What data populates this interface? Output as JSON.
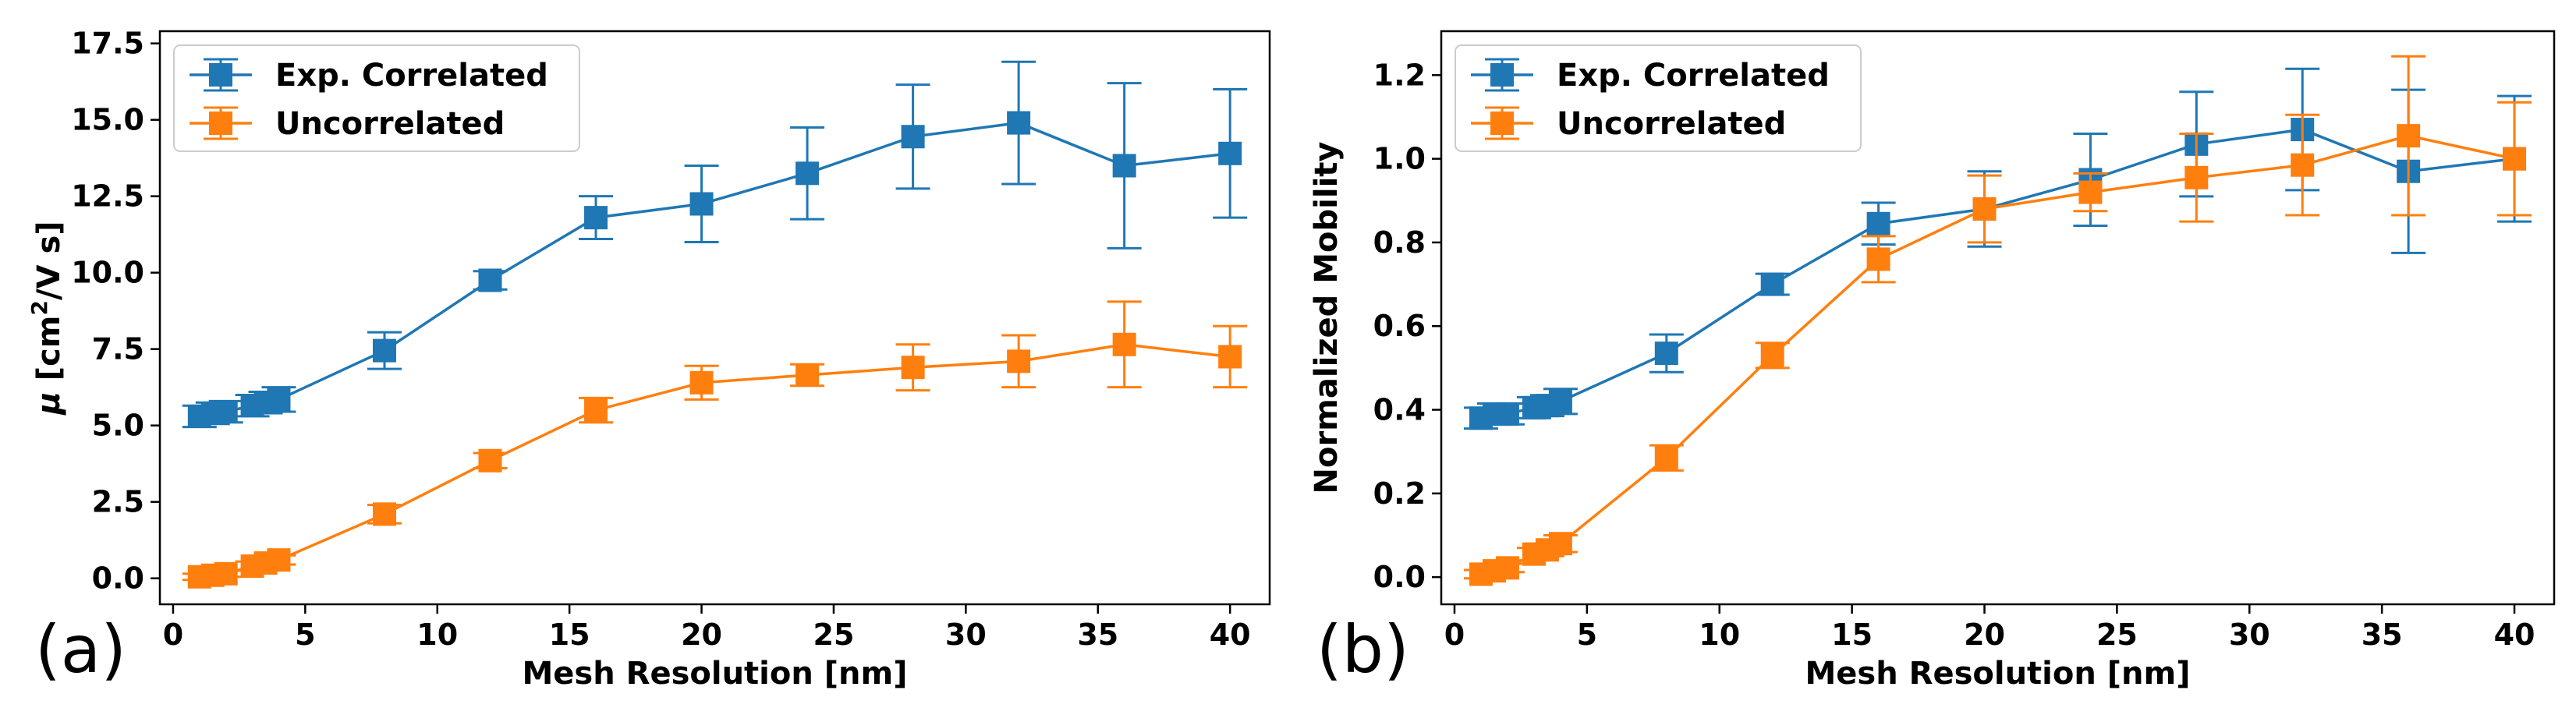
{
  "colors": {
    "exp": "#1f77b4",
    "uncorr": "#ff7f0e"
  },
  "chart_data": [
    {
      "type": "line",
      "panel_label": "(a)",
      "xlabel": "Mesh Resolution [nm]",
      "ylabel_parts": {
        "mu": "μ",
        "open": " [cm",
        "exp": "2",
        "close": "/V s]"
      },
      "xlim": [
        -0.5,
        41.5
      ],
      "ylim": [
        -0.85,
        17.9
      ],
      "xticks": [
        0,
        5,
        10,
        15,
        20,
        25,
        30,
        35,
        40
      ],
      "xtick_labels": [
        "0",
        "5",
        "10",
        "15",
        "20",
        "25",
        "30",
        "35",
        "40"
      ],
      "yticks": [
        0.0,
        2.5,
        5.0,
        7.5,
        10.0,
        12.5,
        15.0,
        17.5
      ],
      "ytick_labels": [
        "0.0",
        "2.5",
        "5.0",
        "7.5",
        "10.0",
        "12.5",
        "15.0",
        "17.5"
      ],
      "legend": {
        "position": "upper-left",
        "entries": [
          "Exp. Correlated",
          "Uncorrelated"
        ]
      },
      "x": [
        1,
        1.5,
        2,
        3,
        3.5,
        4,
        8,
        12,
        16,
        20,
        24,
        28,
        32,
        36,
        40
      ],
      "series": [
        {
          "name": "Exp. Correlated",
          "color_key": "exp",
          "values": [
            5.3,
            5.4,
            5.45,
            5.65,
            5.75,
            5.85,
            7.45,
            9.75,
            11.8,
            12.25,
            13.25,
            14.45,
            14.9,
            13.5,
            13.9
          ],
          "errors": [
            0.35,
            0.35,
            0.35,
            0.35,
            0.35,
            0.4,
            0.6,
            0.3,
            0.7,
            1.25,
            1.5,
            1.7,
            2.0,
            2.7,
            2.1
          ]
        },
        {
          "name": "Uncorrelated",
          "color_key": "uncorr",
          "values": [
            0.05,
            0.1,
            0.15,
            0.4,
            0.5,
            0.6,
            2.1,
            3.85,
            5.5,
            6.4,
            6.65,
            6.9,
            7.1,
            7.65,
            7.25
          ],
          "errors": [
            0.1,
            0.1,
            0.1,
            0.15,
            0.15,
            0.15,
            0.3,
            0.25,
            0.4,
            0.55,
            0.35,
            0.75,
            0.85,
            1.4,
            1.0
          ]
        }
      ]
    },
    {
      "type": "line",
      "panel_label": "(b)",
      "xlabel": "Mesh Resolution [nm]",
      "ylabel": "Normalized Mobility",
      "xlim": [
        -0.5,
        41.5
      ],
      "ylim": [
        -0.065,
        1.305
      ],
      "xticks": [
        0,
        5,
        10,
        15,
        20,
        25,
        30,
        35,
        40
      ],
      "xtick_labels": [
        "0",
        "5",
        "10",
        "15",
        "20",
        "25",
        "30",
        "35",
        "40"
      ],
      "yticks": [
        0.0,
        0.2,
        0.4,
        0.6,
        0.8,
        1.0,
        1.2
      ],
      "ytick_labels": [
        "0.0",
        "0.2",
        "0.4",
        "0.6",
        "0.8",
        "1.0",
        "1.2"
      ],
      "legend": {
        "position": "upper-left",
        "entries": [
          "Exp. Correlated",
          "Uncorrelated"
        ]
      },
      "x": [
        1,
        1.5,
        2,
        3,
        3.5,
        4,
        8,
        12,
        16,
        20,
        24,
        28,
        32,
        36,
        40
      ],
      "series": [
        {
          "name": "Exp. Correlated",
          "color_key": "exp",
          "values": [
            0.38,
            0.39,
            0.39,
            0.405,
            0.41,
            0.42,
            0.535,
            0.7,
            0.845,
            0.88,
            0.95,
            1.035,
            1.07,
            0.97,
            1.0
          ],
          "errors": [
            0.025,
            0.025,
            0.025,
            0.025,
            0.025,
            0.03,
            0.045,
            0.025,
            0.05,
            0.09,
            0.11,
            0.125,
            0.145,
            0.195,
            0.15
          ]
        },
        {
          "name": "Uncorrelated",
          "color_key": "uncorr",
          "values": [
            0.007,
            0.015,
            0.022,
            0.055,
            0.065,
            0.08,
            0.285,
            0.53,
            0.76,
            0.88,
            0.92,
            0.955,
            0.985,
            1.055,
            1.0
          ],
          "errors": [
            0.01,
            0.01,
            0.01,
            0.015,
            0.015,
            0.02,
            0.03,
            0.03,
            0.055,
            0.08,
            0.045,
            0.105,
            0.12,
            0.19,
            0.135
          ]
        }
      ]
    }
  ]
}
